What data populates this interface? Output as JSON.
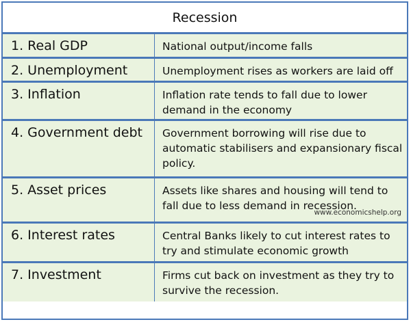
{
  "title": "Recession",
  "rows": [
    {
      "label": "1. Real GDP",
      "description": "National output/income falls"
    },
    {
      "label": "2. Unemployment",
      "description": "Unemployment rises as workers are laid off"
    },
    {
      "label": "3. Inflation",
      "description": "Inflation rate tends to fall due to lower demand in the economy"
    },
    {
      "label": "4. Government debt",
      "description": "Government borrowing will rise due to automatic stabilisers and expansionary fiscal policy."
    },
    {
      "label": "5. Asset prices",
      "description": "Assets like shares and housing will tend to fall due to less demand in recession."
    },
    {
      "label": "6. Interest rates",
      "description": "Central Banks likely to cut interest rates to try and stimulate economic growth"
    },
    {
      "label": "7. Investment",
      "description": "Firms cut back on investment as they try to survive the recession."
    }
  ],
  "watermark": "www.economicshelp.org",
  "colors": {
    "border": "#4a78b8",
    "row_background": "#eaf3df"
  }
}
